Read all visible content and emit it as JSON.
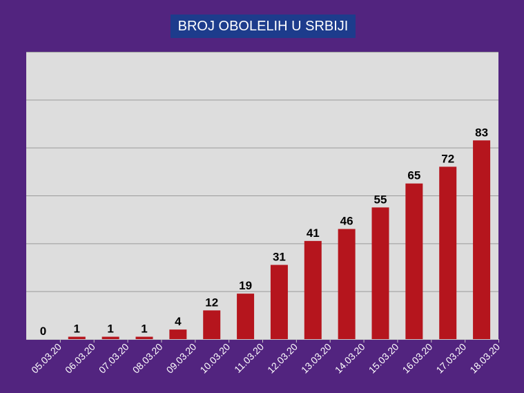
{
  "chart_data": {
    "type": "bar",
    "title": "BROJ OBOLELIH U SRBIJI",
    "xlabel": "",
    "ylabel": "",
    "categories": [
      "05.03.20",
      "06.03.20",
      "07.03.20",
      "08.03.20",
      "09.03.20",
      "10.03.20",
      "11.03.20",
      "12.03.20",
      "13.03.20",
      "14.03.20",
      "15.03.20",
      "16.03.20",
      "17.03.20",
      "18.03.20"
    ],
    "values": [
      0,
      1,
      1,
      1,
      4,
      12,
      19,
      31,
      41,
      46,
      55,
      65,
      72,
      83
    ],
    "ylim": [
      0,
      120
    ],
    "grid": true,
    "legend": "none",
    "colors": {
      "bar": "#b5151d",
      "plot_background": "#dddddd",
      "page_background": "#52247f",
      "title_background": "#1d3c8c",
      "gridline": "#9a9a9a",
      "axis": "#c8c8c8"
    }
  }
}
